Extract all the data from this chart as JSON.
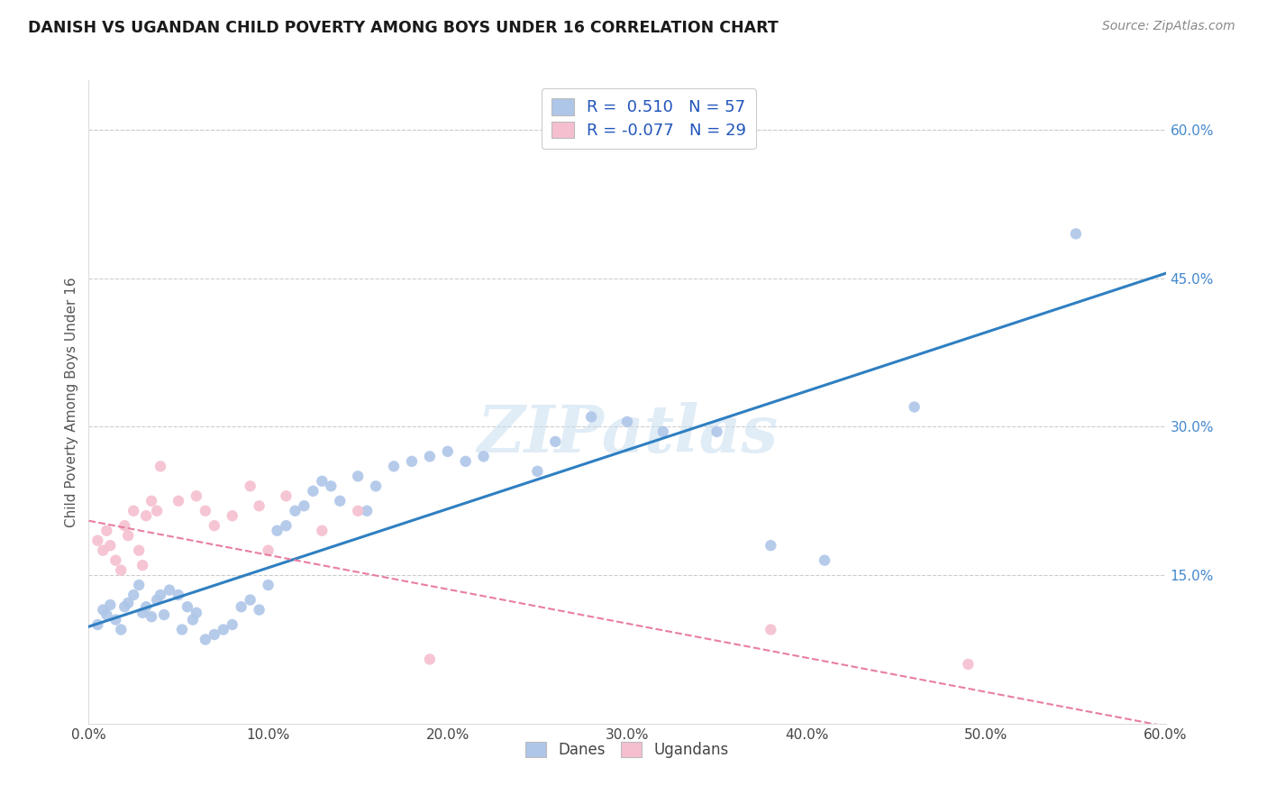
{
  "title": "DANISH VS UGANDAN CHILD POVERTY AMONG BOYS UNDER 16 CORRELATION CHART",
  "source": "Source: ZipAtlas.com",
  "ylabel": "Child Poverty Among Boys Under 16",
  "xlabel_ticks": [
    "0.0%",
    "10.0%",
    "20.0%",
    "30.0%",
    "40.0%",
    "50.0%",
    "60.0%"
  ],
  "ylabel_ticks_right": [
    "15.0%",
    "30.0%",
    "45.0%",
    "60.0%"
  ],
  "ylabel_ticks_vals": [
    0.15,
    0.3,
    0.45,
    0.6
  ],
  "xlim": [
    0.0,
    0.6
  ],
  "ylim": [
    0.0,
    0.65
  ],
  "danes_R": 0.51,
  "danes_N": 57,
  "ugandans_R": -0.077,
  "ugandans_N": 29,
  "danes_color": "#aec6e8",
  "ugandans_color": "#f5bfcf",
  "danes_line_color": "#2f7fc1",
  "ugandans_line_color": "#e87fa0",
  "watermark": "ZIPatlas",
  "background_color": "#ffffff",
  "danes_x": [
    0.005,
    0.008,
    0.01,
    0.012,
    0.015,
    0.018,
    0.02,
    0.022,
    0.025,
    0.028,
    0.03,
    0.032,
    0.035,
    0.038,
    0.04,
    0.042,
    0.045,
    0.05,
    0.052,
    0.055,
    0.058,
    0.06,
    0.065,
    0.07,
    0.075,
    0.08,
    0.085,
    0.09,
    0.095,
    0.1,
    0.105,
    0.11,
    0.115,
    0.12,
    0.125,
    0.13,
    0.135,
    0.14,
    0.15,
    0.155,
    0.16,
    0.17,
    0.18,
    0.19,
    0.2,
    0.21,
    0.22,
    0.25,
    0.26,
    0.28,
    0.3,
    0.32,
    0.35,
    0.38,
    0.41,
    0.46,
    0.55
  ],
  "danes_y": [
    0.1,
    0.115,
    0.11,
    0.12,
    0.105,
    0.095,
    0.118,
    0.122,
    0.13,
    0.14,
    0.112,
    0.118,
    0.108,
    0.125,
    0.13,
    0.11,
    0.135,
    0.13,
    0.095,
    0.118,
    0.105,
    0.112,
    0.085,
    0.09,
    0.095,
    0.1,
    0.118,
    0.125,
    0.115,
    0.14,
    0.195,
    0.2,
    0.215,
    0.22,
    0.235,
    0.245,
    0.24,
    0.225,
    0.25,
    0.215,
    0.24,
    0.26,
    0.265,
    0.27,
    0.275,
    0.265,
    0.27,
    0.255,
    0.285,
    0.31,
    0.305,
    0.295,
    0.295,
    0.18,
    0.165,
    0.32,
    0.495
  ],
  "ugandans_x": [
    0.005,
    0.008,
    0.01,
    0.012,
    0.015,
    0.018,
    0.02,
    0.022,
    0.025,
    0.028,
    0.03,
    0.032,
    0.035,
    0.038,
    0.04,
    0.05,
    0.06,
    0.065,
    0.07,
    0.08,
    0.09,
    0.095,
    0.1,
    0.11,
    0.13,
    0.15,
    0.19,
    0.38,
    0.49
  ],
  "ugandans_y": [
    0.185,
    0.175,
    0.195,
    0.18,
    0.165,
    0.155,
    0.2,
    0.19,
    0.215,
    0.175,
    0.16,
    0.21,
    0.225,
    0.215,
    0.26,
    0.225,
    0.23,
    0.215,
    0.2,
    0.21,
    0.24,
    0.22,
    0.175,
    0.23,
    0.195,
    0.215,
    0.065,
    0.095,
    0.06
  ]
}
